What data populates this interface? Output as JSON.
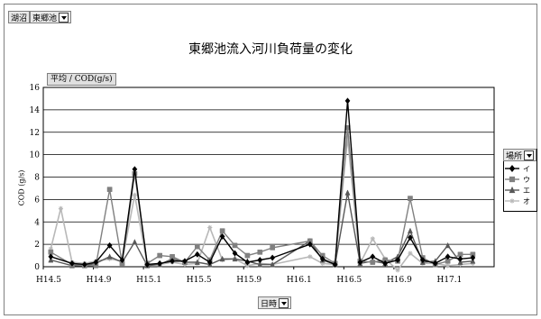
{
  "page_field": {
    "label": "湖沼",
    "value": "東郷池"
  },
  "data_field": {
    "label": "平均 / COD(g/s)"
  },
  "legend_field": {
    "label": "場所"
  },
  "x_field": {
    "label": "日時"
  },
  "colors": {
    "イ": "#000000",
    "ウ": "#808080",
    "エ": "#585858",
    "オ": "#b8b8b8"
  },
  "chart_data": {
    "type": "line",
    "title": "東郷池流入河川負荷量の変化",
    "xlabel": "",
    "ylabel": "COD (g/s)",
    "ylim": [
      0,
      16
    ],
    "yticks": [
      0,
      2,
      4,
      6,
      8,
      10,
      12,
      14,
      16
    ],
    "grid": true,
    "legend_position": "right",
    "x_tick_labels": [
      "H14.5",
      "H14.9",
      "H15.1",
      "H15.5",
      "H15.9",
      "H16.1",
      "H16.5",
      "H16.9",
      "H17.1"
    ],
    "x_tick_positions": [
      0,
      4,
      8,
      12,
      16,
      20,
      24,
      28,
      32
    ],
    "x_range": [
      0,
      36
    ],
    "series": [
      {
        "name": "イ",
        "marker": "diamond",
        "points": [
          [
            0.6,
            0.9
          ],
          [
            2.3,
            0.3
          ],
          [
            3.3,
            0.2
          ],
          [
            4.2,
            0.4
          ],
          [
            5.3,
            1.9
          ],
          [
            6.3,
            0.6
          ],
          [
            7.3,
            8.7
          ],
          [
            8.3,
            0.2
          ],
          [
            9.3,
            0.3
          ],
          [
            10.3,
            0.5
          ],
          [
            11.3,
            0.5
          ],
          [
            12.3,
            1.1
          ],
          [
            13.3,
            0.4
          ],
          [
            14.3,
            2.7
          ],
          [
            15.3,
            1.2
          ],
          [
            16.3,
            0.4
          ],
          [
            17.3,
            0.6
          ],
          [
            18.3,
            0.8
          ],
          [
            21.3,
            2.0
          ],
          [
            22.3,
            0.7
          ],
          [
            23.3,
            0.2
          ],
          [
            24.3,
            14.8
          ],
          [
            25.3,
            0.4
          ],
          [
            26.3,
            0.9
          ],
          [
            27.3,
            0.3
          ],
          [
            28.3,
            0.6
          ],
          [
            29.3,
            2.6
          ],
          [
            30.3,
            0.6
          ],
          [
            31.3,
            0.3
          ],
          [
            32.3,
            0.9
          ],
          [
            33.3,
            0.7
          ],
          [
            34.3,
            0.8
          ]
        ]
      },
      {
        "name": "ウ",
        "marker": "square",
        "points": [
          [
            0.6,
            1.3
          ],
          [
            2.3,
            0.2
          ],
          [
            3.3,
            0.1
          ],
          [
            4.2,
            0.1
          ],
          [
            5.3,
            6.9
          ],
          [
            6.3,
            0.3
          ],
          [
            7.3,
            8.3
          ],
          [
            8.3,
            0.3
          ],
          [
            9.3,
            1.0
          ],
          [
            10.3,
            0.9
          ],
          [
            11.3,
            0.4
          ],
          [
            12.3,
            1.8
          ],
          [
            13.3,
            0.6
          ],
          [
            14.3,
            3.2
          ],
          [
            15.3,
            1.9
          ],
          [
            16.3,
            1.0
          ],
          [
            17.3,
            1.3
          ],
          [
            18.3,
            1.7
          ],
          [
            21.3,
            2.3
          ],
          [
            22.3,
            1.0
          ],
          [
            23.3,
            0.3
          ],
          [
            24.3,
            12.4
          ],
          [
            25.3,
            0.5
          ],
          [
            26.3,
            0.4
          ],
          [
            27.3,
            0.6
          ],
          [
            28.3,
            0.5
          ],
          [
            29.3,
            6.1
          ],
          [
            30.3,
            0.8
          ],
          [
            31.3,
            0.2
          ],
          [
            32.3,
            0.5
          ],
          [
            33.3,
            1.1
          ],
          [
            34.3,
            1.1
          ]
        ]
      },
      {
        "name": "エ",
        "marker": "triangle",
        "points": [
          [
            0.6,
            0.6
          ],
          [
            2.3,
            0.1
          ],
          [
            3.3,
            0.1
          ],
          [
            4.2,
            0.3
          ],
          [
            5.3,
            0.9
          ],
          [
            6.3,
            0.4
          ],
          [
            7.3,
            2.2
          ],
          [
            8.3,
            0.1
          ],
          [
            9.3,
            0.2
          ],
          [
            10.3,
            0.7
          ],
          [
            11.3,
            0.4
          ],
          [
            12.3,
            0.4
          ],
          [
            13.3,
            0.2
          ],
          [
            14.3,
            0.7
          ],
          [
            15.3,
            0.7
          ],
          [
            16.3,
            0.5
          ],
          [
            17.3,
            0.2
          ],
          [
            18.3,
            0.2
          ],
          [
            21.3,
            2.3
          ],
          [
            22.3,
            0.6
          ],
          [
            23.3,
            0.2
          ],
          [
            24.3,
            6.6
          ],
          [
            25.3,
            0.3
          ],
          [
            26.3,
            0.5
          ],
          [
            27.3,
            0.3
          ],
          [
            28.3,
            0.9
          ],
          [
            29.3,
            3.2
          ],
          [
            30.3,
            0.4
          ],
          [
            31.3,
            0.5
          ],
          [
            32.3,
            1.9
          ],
          [
            33.3,
            0.4
          ],
          [
            34.3,
            0.5
          ]
        ]
      },
      {
        "name": "オ",
        "marker": "star",
        "points": [
          [
            0.6,
            1.6
          ],
          [
            1.4,
            5.2
          ],
          [
            2.3,
            0.4
          ],
          [
            3.3,
            0.3
          ],
          [
            4.2,
            0.5
          ],
          [
            5.3,
            0.7
          ],
          [
            6.3,
            0.5
          ],
          [
            7.3,
            6.4
          ],
          [
            8.3,
            0.2
          ],
          [
            9.3,
            0.2
          ],
          [
            10.3,
            0.4
          ],
          [
            11.3,
            0.2
          ],
          [
            12.3,
            0.3
          ],
          [
            13.3,
            3.5
          ],
          [
            14.3,
            0.6
          ],
          [
            15.3,
            0.7
          ],
          [
            16.3,
            0.1
          ],
          [
            17.3,
            0.3
          ],
          [
            18.3,
            0.2
          ],
          [
            21.3,
            0.9
          ],
          [
            22.3,
            0.3
          ],
          [
            23.3,
            0.2
          ],
          [
            24.3,
            11.5
          ],
          [
            25.3,
            0.3
          ],
          [
            26.3,
            2.5
          ],
          [
            27.3,
            0.7
          ],
          [
            28.3,
            -0.3
          ],
          [
            29.3,
            1.2
          ],
          [
            30.3,
            0.3
          ],
          [
            31.3,
            0.3
          ],
          [
            32.3,
            0.1
          ],
          [
            33.3,
            0.2
          ],
          [
            34.3,
            0.3
          ]
        ]
      }
    ]
  }
}
